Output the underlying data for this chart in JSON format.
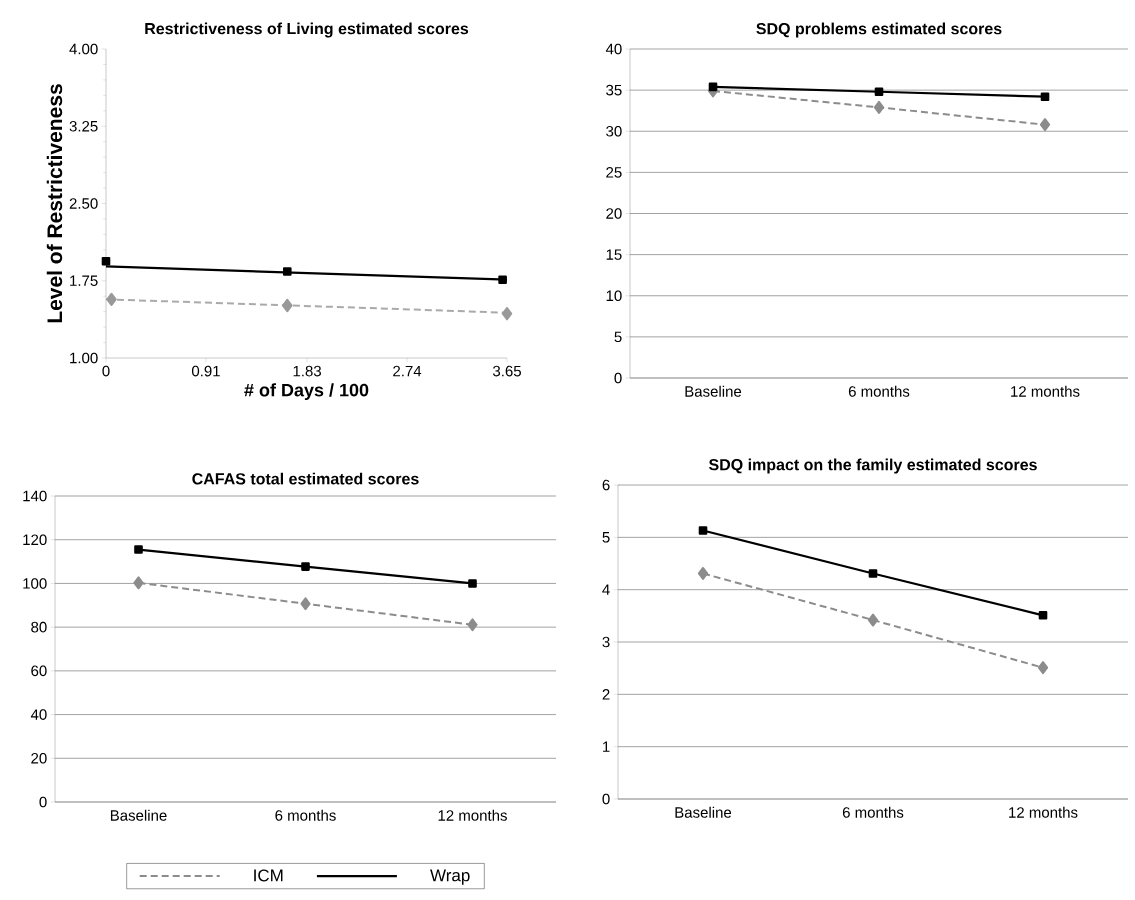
{
  "chart_data": [
    {
      "type": "line",
      "title": "Restrictiveness of Living estimated scores",
      "xlabel": "# of Days / 100",
      "ylabel": "Level of Restrictiveness",
      "xlim": [
        0,
        3.65
      ],
      "ylim": [
        1,
        4
      ],
      "xticks": [
        0,
        0.91,
        1.83,
        2.74,
        3.65
      ],
      "yticks": [
        {
          "value": 1,
          "label": "1.00"
        },
        {
          "value": 1.75,
          "label": "1.75"
        },
        {
          "value": 2.5,
          "label": "2.50"
        },
        {
          "value": 3.25,
          "label": "3.25"
        },
        {
          "value": 4,
          "label": "4.00"
        }
      ],
      "grid": false,
      "legend": false,
      "series": [
        {
          "type": "scatter",
          "x": [
            0,
            1.65,
            3.61
          ],
          "values": [
            1.94,
            1.84,
            1.76
          ],
          "color": "#000000",
          "marker": "square"
        },
        {
          "type": "line",
          "x": [
            0,
            3.65
          ],
          "values": [
            1.89,
            1.76
          ],
          "color": "#000000",
          "marker": "none",
          "line_style": "solid"
        },
        {
          "type": "scatter",
          "x": [
            0.05,
            1.65,
            3.65
          ],
          "values": [
            1.57,
            1.51,
            1.43
          ],
          "color": "#999999",
          "marker": "diamond"
        },
        {
          "type": "line",
          "x": [
            0,
            3.65
          ],
          "values": [
            1.57,
            1.44
          ],
          "color": "#aaaaaa",
          "marker": "none",
          "line_style": "dashed"
        }
      ]
    },
    {
      "type": "line",
      "title": "SDQ problems estimated scores",
      "categories": [
        "Baseline",
        "6 months",
        "12 months"
      ],
      "ylim": [
        0,
        40
      ],
      "yticks": [
        0,
        5,
        10,
        15,
        20,
        25,
        30,
        35,
        40
      ],
      "grid": "y",
      "legend": false,
      "series": [
        {
          "values": [
            34.9,
            32.9,
            30.8
          ],
          "color": "#8c8c8c",
          "marker": "diamond",
          "line_style": "dashed"
        },
        {
          "values": [
            35.4,
            34.8,
            34.2
          ],
          "color": "#000000",
          "marker": "square",
          "line_style": "solid"
        }
      ]
    },
    {
      "type": "line",
      "title": "CAFAS total estimated scores",
      "categories": [
        "Baseline",
        "6 months",
        "12 months"
      ],
      "ylim": [
        0,
        140
      ],
      "yticks": [
        0,
        20,
        40,
        60,
        80,
        100,
        120,
        140
      ],
      "grid": "y",
      "legend": "bottom",
      "series": [
        {
          "name": "ICM",
          "values": [
            100.3,
            90.7,
            81.1
          ],
          "color": "#8c8c8c",
          "marker": "diamond",
          "line_style": "dashed"
        },
        {
          "name": "Wrap",
          "values": [
            115.5,
            107.7,
            100
          ],
          "color": "#000000",
          "marker": "square",
          "line_style": "solid"
        }
      ]
    },
    {
      "type": "line",
      "title": "SDQ impact on the family estimated scores",
      "categories": [
        "Baseline",
        "6 months",
        "12 months"
      ],
      "ylim": [
        0,
        6
      ],
      "yticks": [
        0,
        1,
        2,
        3,
        4,
        5,
        6
      ],
      "grid": "y",
      "legend": false,
      "series": [
        {
          "values": [
            4.31,
            3.42,
            2.51
          ],
          "color": "#8c8c8c",
          "marker": "diamond",
          "line_style": "dashed"
        },
        {
          "values": [
            5.13,
            4.31,
            3.51
          ],
          "color": "#000000",
          "marker": "square",
          "line_style": "solid"
        }
      ]
    }
  ]
}
